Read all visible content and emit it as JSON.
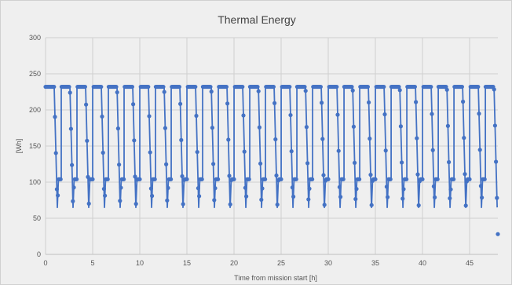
{
  "chart_data": {
    "type": "line",
    "title": "Thermal Energy",
    "xlabel": "Time from mission start [h]",
    "ylabel": "[Wh]",
    "xlim": [
      0,
      48
    ],
    "ylim": [
      0,
      300
    ],
    "xticks": [
      0,
      5,
      10,
      15,
      20,
      25,
      30,
      35,
      40,
      45
    ],
    "yticks": [
      0,
      50,
      100,
      150,
      200,
      250,
      300
    ],
    "grid": true,
    "legend": "none",
    "cycle_period_h": 1.667,
    "levels": {
      "high": 232,
      "mid": 104,
      "low": 65
    },
    "series": [
      {
        "color": "#4472c4",
        "marker": "circle",
        "cycle_shape": [
          {
            "phase": 0.0,
            "y": 232
          },
          {
            "phase": 0.55,
            "y": 232
          },
          {
            "phase": 0.75,
            "y": 65
          },
          {
            "phase": 0.82,
            "y": 104
          },
          {
            "phase": 1.0,
            "y": 104
          }
        ]
      }
    ]
  }
}
